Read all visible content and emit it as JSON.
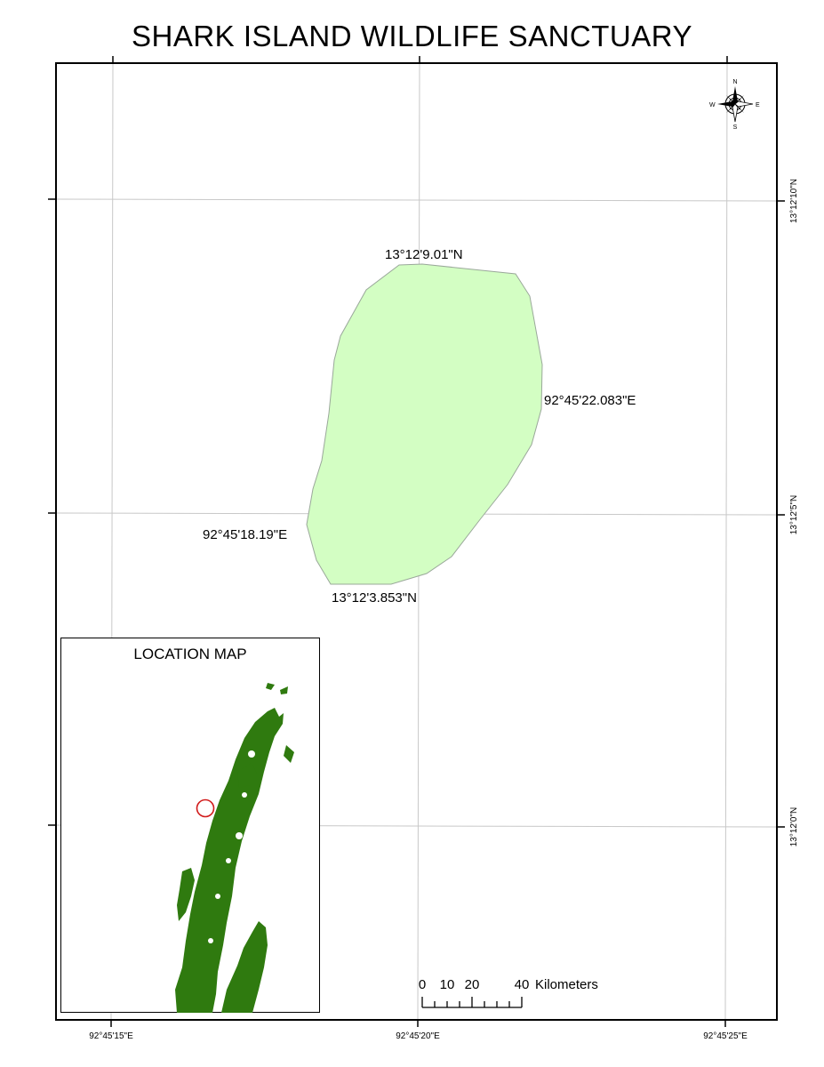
{
  "title": "SHARK ISLAND WILDLIFE SANCTUARY",
  "graticule": {
    "lon_labels": [
      "92°45'15\"E",
      "92°45'20\"E",
      "92°45'25\"E"
    ],
    "lat_labels": [
      "13°12'10\"N",
      "13°12'5\"N",
      "13°12'0\"N"
    ]
  },
  "polygon_labels": {
    "north": "13°12'9.01\"N",
    "south": "13°12'3.853\"N",
    "east": "92°45'22.083\"E",
    "west": "92°45'18.19\"E"
  },
  "north_arrow": {
    "n": "N",
    "s": "S",
    "e": "E",
    "w": "W"
  },
  "scale_bar": {
    "ticks": [
      "0",
      "10",
      "20",
      "40"
    ],
    "unit": "Kilometers"
  },
  "inset": {
    "title": "LOCATION MAP"
  },
  "colors": {
    "sanctuary_fill": "#d3fec3",
    "sanctuary_stroke": "#9aa89a",
    "land": "#2f7a0f",
    "locator_circle": "#d11a1a",
    "grid": "#c8c8c8"
  }
}
